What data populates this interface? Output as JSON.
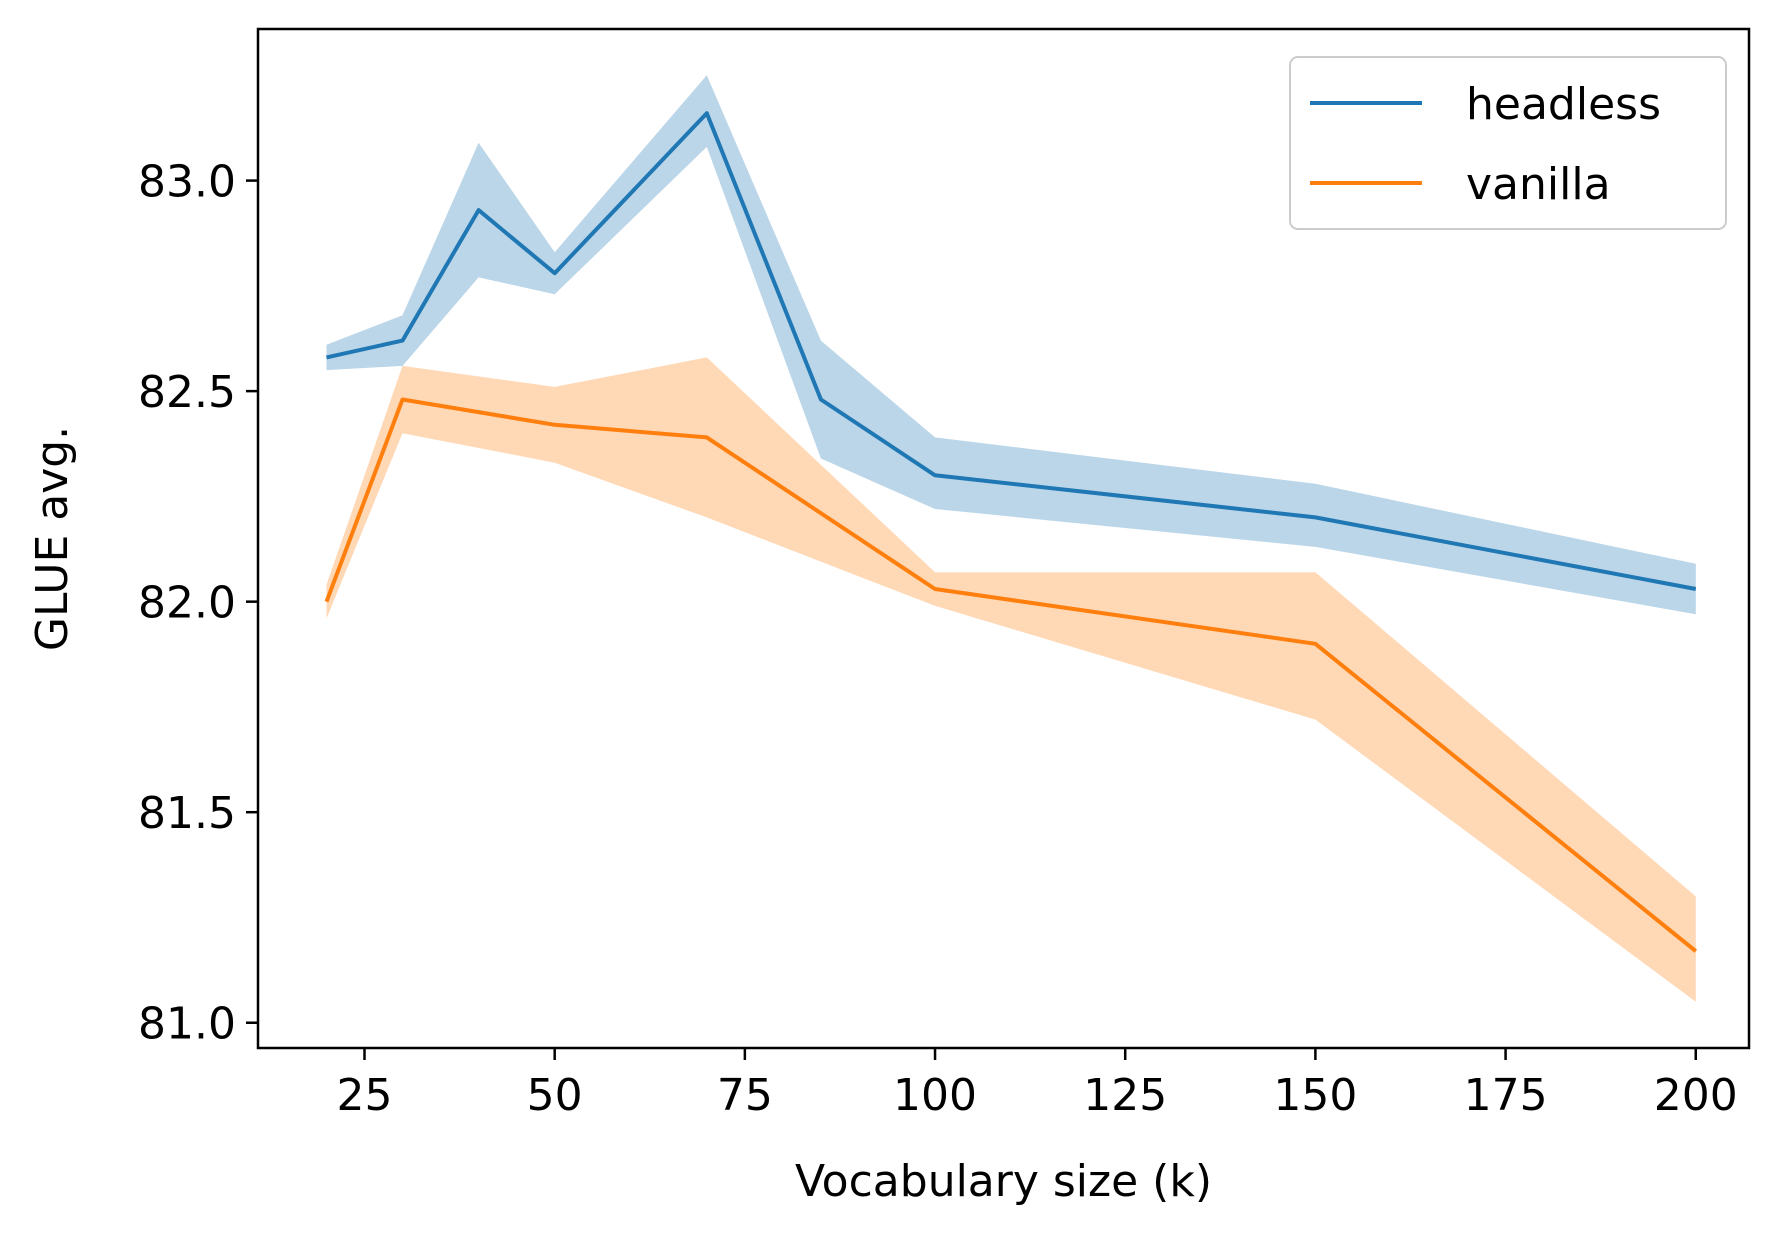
{
  "chart_data": {
    "type": "line",
    "title": "",
    "xlabel": "Vocabulary size (k)",
    "ylabel": "GLUE avg.",
    "xlim": [
      11,
      207
    ],
    "ylim": [
      80.94,
      83.36
    ],
    "xticks": [
      25,
      50,
      75,
      100,
      125,
      150,
      175,
      200
    ],
    "xtick_labels": [
      "25",
      "50",
      "75",
      "100",
      "125",
      "150",
      "175",
      "200"
    ],
    "yticks": [
      81.0,
      81.5,
      82.0,
      82.5,
      83.0
    ],
    "ytick_labels": [
      "81.0",
      "81.5",
      "82.0",
      "82.5",
      "83.0"
    ],
    "grid": false,
    "legend_position": "top-right",
    "series": [
      {
        "name": "headless",
        "color": "#1f77b4",
        "band_color": "#1f77b4",
        "x": [
          20,
          30,
          40,
          50,
          70,
          85,
          100,
          150,
          200
        ],
        "y": [
          82.58,
          82.62,
          82.93,
          82.78,
          83.16,
          82.48,
          82.3,
          82.2,
          82.03
        ],
        "y_lower": [
          82.55,
          82.56,
          82.77,
          82.73,
          83.08,
          82.34,
          82.22,
          82.13,
          81.97
        ],
        "y_upper": [
          82.61,
          82.68,
          83.09,
          82.83,
          83.25,
          82.62,
          82.39,
          82.28,
          82.09
        ]
      },
      {
        "name": "vanilla",
        "color": "#ff7f0e",
        "band_color": "#ff7f0e",
        "x": [
          20,
          30,
          50,
          70,
          100,
          150,
          200
        ],
        "y": [
          82.0,
          82.48,
          82.42,
          82.39,
          82.03,
          81.9,
          81.17
        ],
        "y_lower": [
          81.96,
          82.4,
          82.33,
          82.2,
          81.99,
          81.72,
          81.05
        ],
        "y_upper": [
          82.04,
          82.56,
          82.51,
          82.58,
          82.07,
          82.07,
          81.3
        ]
      }
    ]
  }
}
